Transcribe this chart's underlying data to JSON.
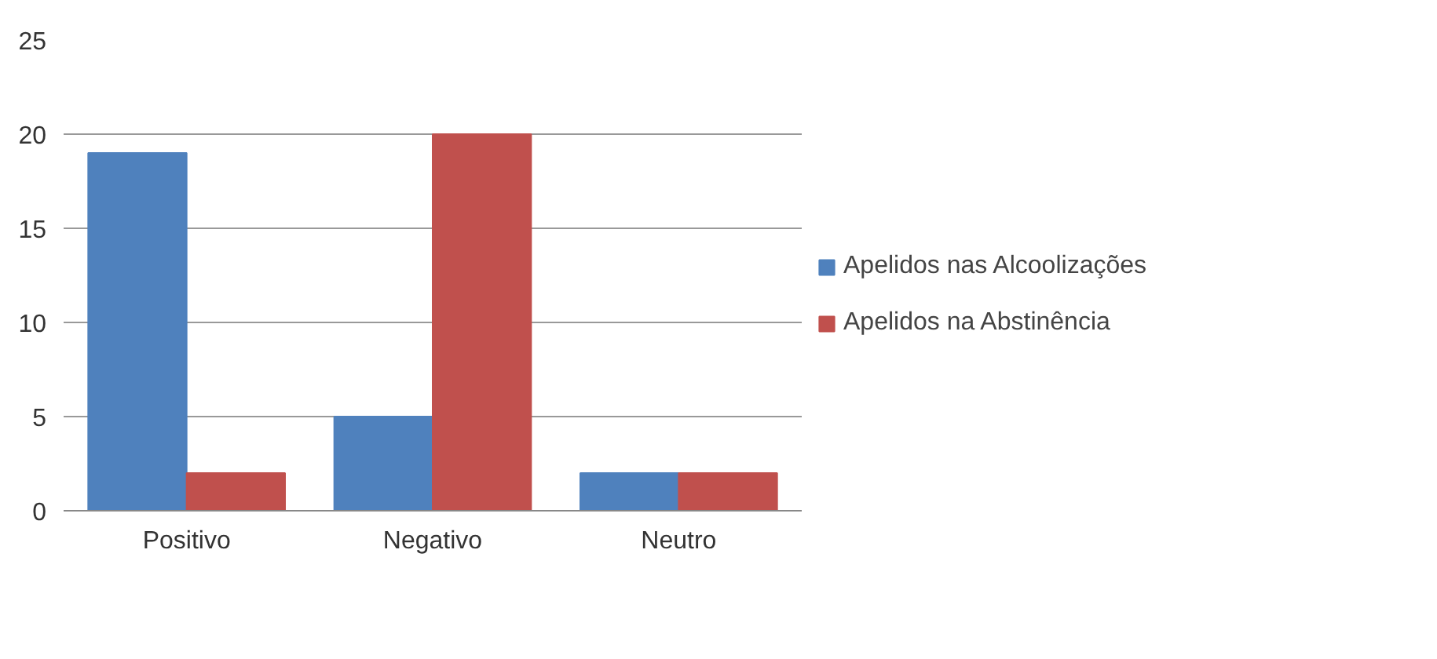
{
  "chart_data": {
    "type": "bar",
    "categories": [
      "Positivo",
      "Negativo",
      "Neutro"
    ],
    "series": [
      {
        "name": "Apelidos nas Alcoolizações",
        "color": "#4f81bd",
        "values": [
          19,
          5,
          2
        ]
      },
      {
        "name": "Apelidos na Abstinência",
        "color": "#c0504d",
        "values": [
          2,
          20,
          2
        ]
      }
    ],
    "ylim": [
      0,
      25
    ],
    "yticks": [
      0,
      5,
      10,
      15,
      20,
      25
    ],
    "grid": "y",
    "legend": "right"
  }
}
